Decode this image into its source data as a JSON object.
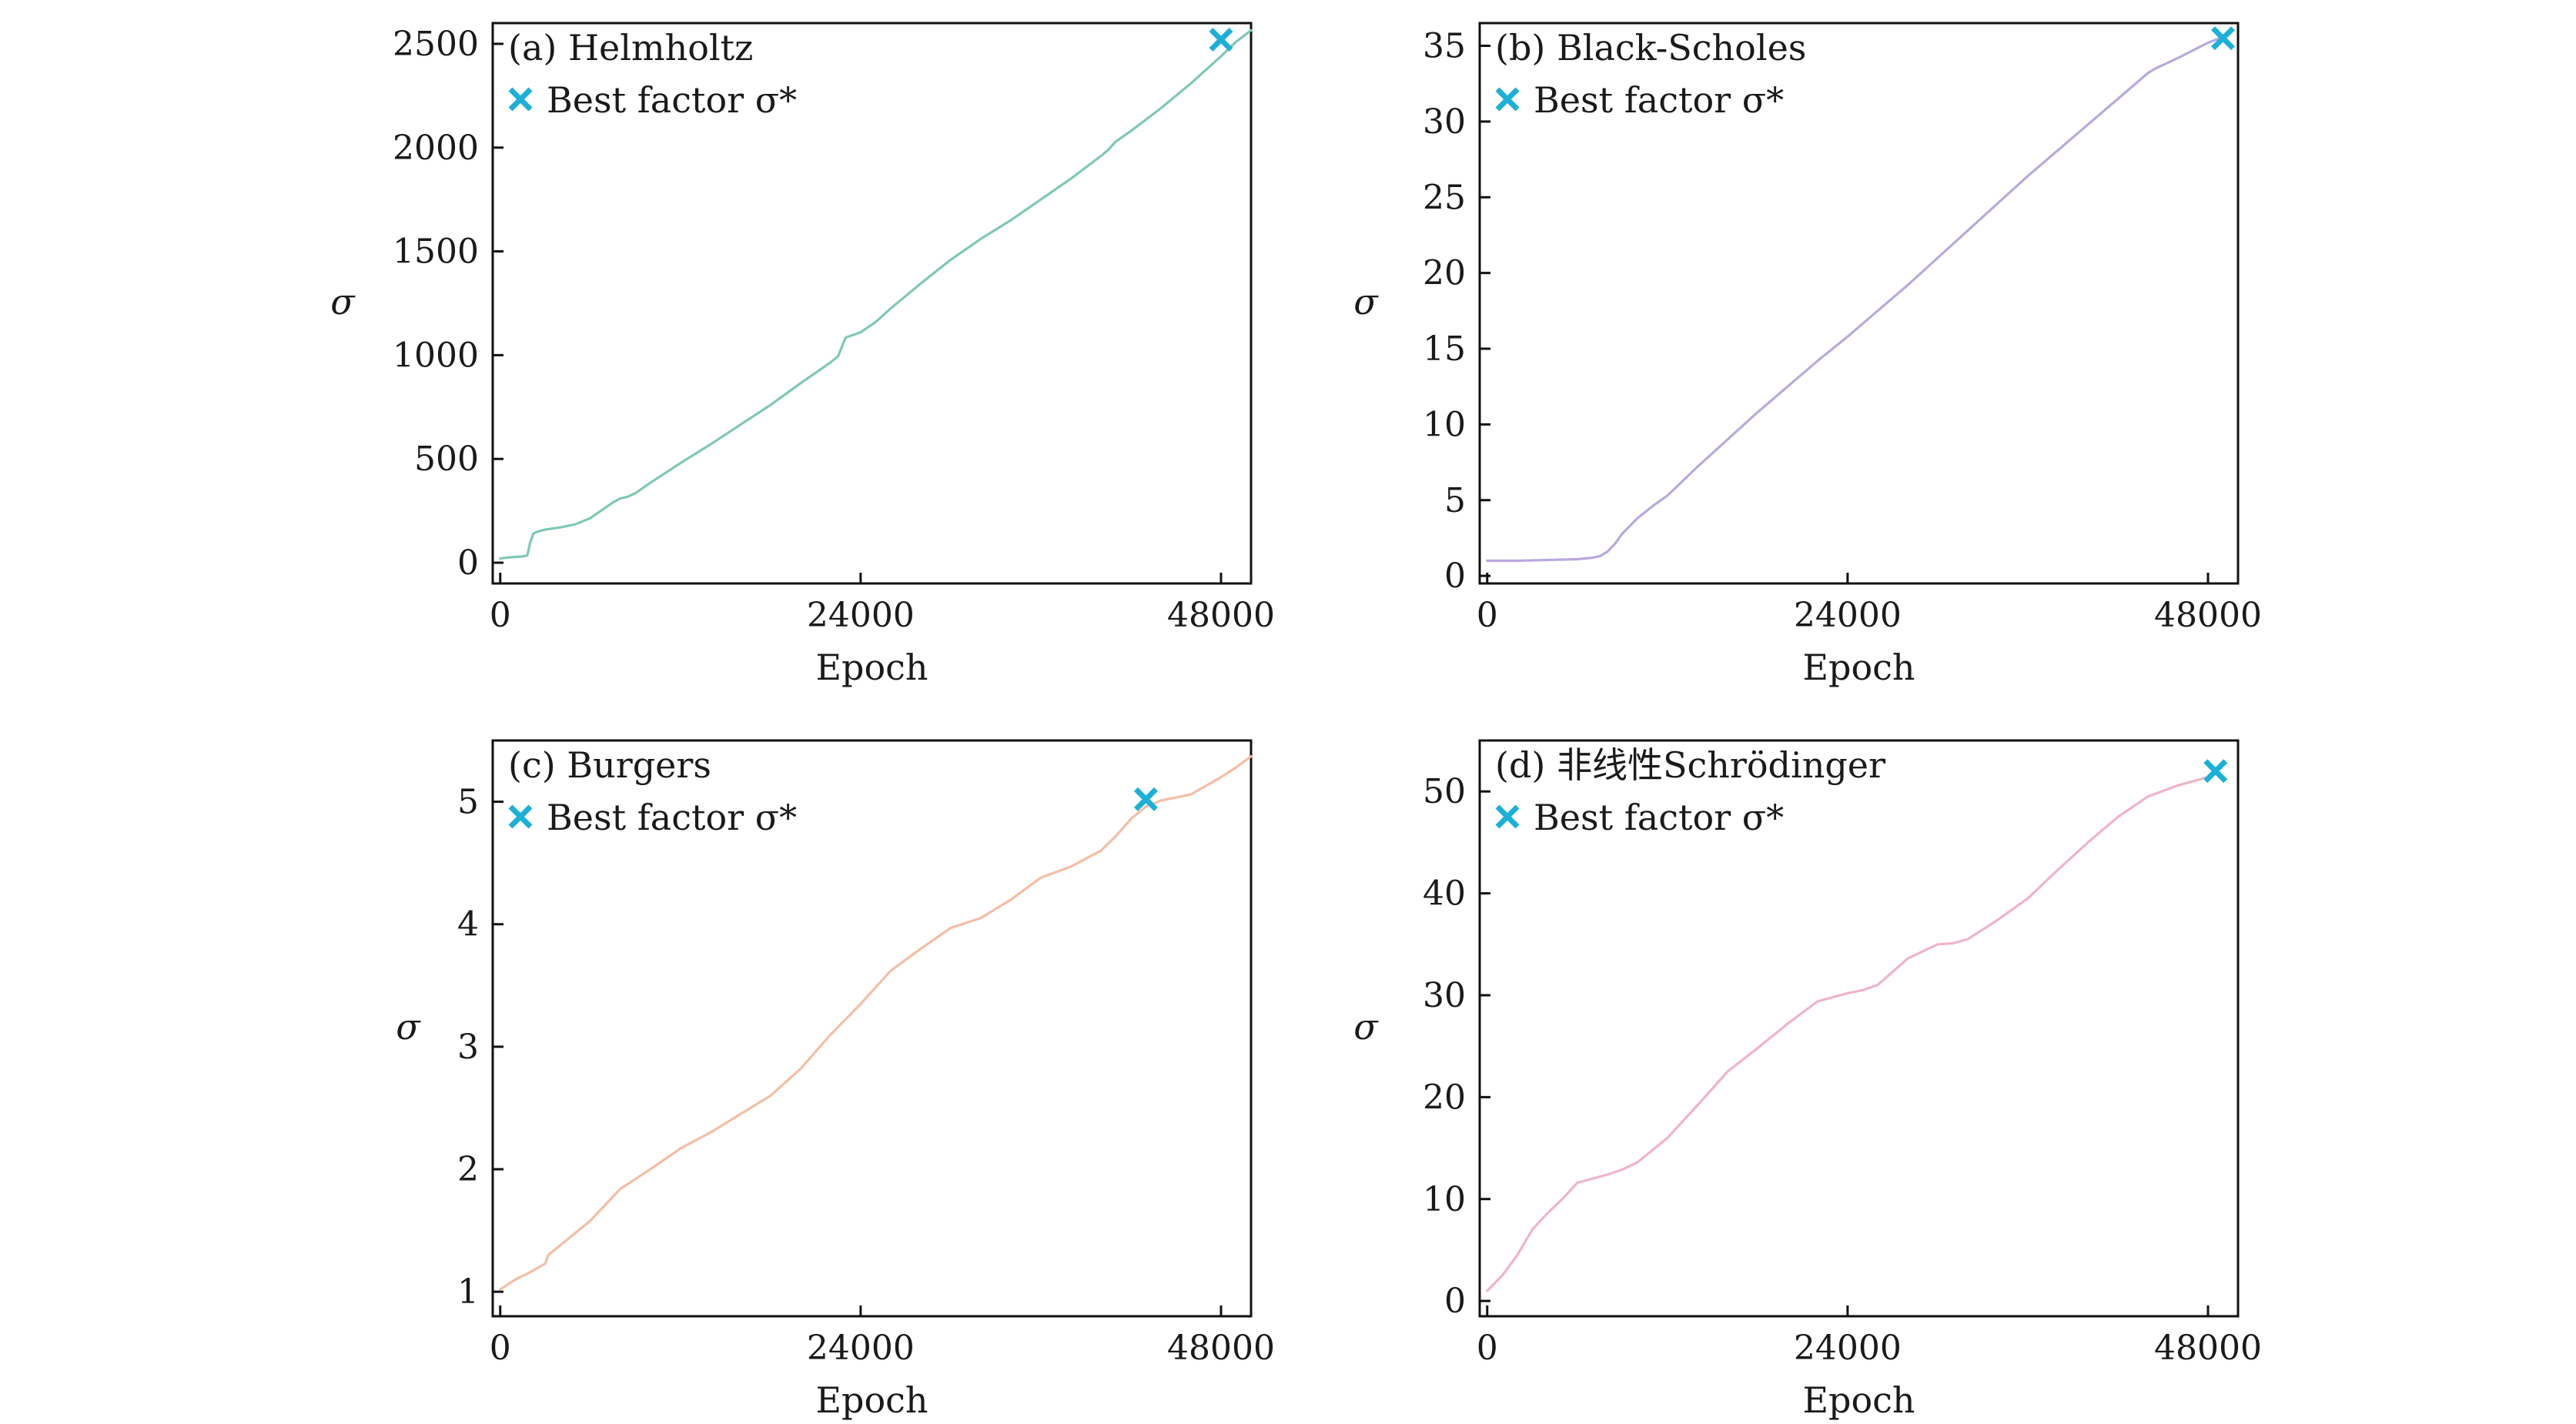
{
  "chart_data": [
    {
      "type": "line",
      "title": "(a) Helmholtz",
      "xlabel": "Epoch",
      "ylabel": "σ",
      "xlim": [
        -500,
        50000
      ],
      "ylim": [
        -100,
        2600
      ],
      "xticks": [
        0,
        24000,
        48000
      ],
      "yticks": [
        0,
        500,
        1000,
        1500,
        2000,
        2500
      ],
      "color": "#7fc8b6",
      "legend": "Best factor σ*",
      "best": {
        "x": 48000,
        "y": 2520
      },
      "series": [
        {
          "name": "σ",
          "x": [
            0,
            500,
            1000,
            1500,
            1800,
            2000,
            2200,
            2500,
            3000,
            4000,
            5000,
            6000,
            7000,
            7500,
            8000,
            8500,
            9000,
            10000,
            12000,
            14000,
            16000,
            18000,
            20000,
            22000,
            22500,
            23000,
            24000,
            25000,
            26000,
            28000,
            30000,
            31000,
            32000,
            34000,
            36000,
            38000,
            40000,
            40500,
            41000,
            42000,
            44000,
            46000,
            48000,
            49000,
            50000
          ],
          "y": [
            20,
            25,
            28,
            30,
            35,
            100,
            140,
            150,
            160,
            170,
            185,
            215,
            265,
            290,
            310,
            318,
            335,
            385,
            480,
            570,
            665,
            760,
            865,
            965,
            995,
            1085,
            1110,
            1160,
            1225,
            1345,
            1460,
            1510,
            1560,
            1650,
            1750,
            1850,
            1960,
            1990,
            2030,
            2080,
            2190,
            2310,
            2440,
            2510,
            2565
          ]
        }
      ]
    },
    {
      "type": "line",
      "title": "(b) Black-Scholes",
      "xlabel": "Epoch",
      "ylabel": "σ",
      "xlim": [
        -500,
        50000
      ],
      "ylim": [
        -0.5,
        36.5
      ],
      "xticks": [
        0,
        24000,
        48000
      ],
      "yticks": [
        0,
        5,
        10,
        15,
        20,
        25,
        30,
        35
      ],
      "color": "#b9a9de",
      "legend": "Best factor σ*",
      "best": {
        "x": 49000,
        "y": 35.5
      },
      "series": [
        {
          "name": "σ",
          "x": [
            0,
            2000,
            4000,
            6000,
            7000,
            7500,
            8000,
            8500,
            9000,
            10000,
            11000,
            12000,
            14000,
            16000,
            18000,
            20000,
            22000,
            24000,
            26000,
            28000,
            30000,
            32000,
            34000,
            36000,
            38000,
            40000,
            42000,
            44000,
            44500,
            46000,
            48000,
            49000
          ],
          "y": [
            1.0,
            1.0,
            1.05,
            1.1,
            1.2,
            1.3,
            1.6,
            2.1,
            2.8,
            3.8,
            4.6,
            5.3,
            7.2,
            9.0,
            10.8,
            12.5,
            14.2,
            15.8,
            17.5,
            19.2,
            21.0,
            22.8,
            24.6,
            26.4,
            28.1,
            29.8,
            31.5,
            33.2,
            33.5,
            34.2,
            35.2,
            35.6
          ]
        }
      ]
    },
    {
      "type": "line",
      "title": "(c) Burgers",
      "xlabel": "Epoch",
      "ylabel": "σ",
      "xlim": [
        -500,
        50000
      ],
      "ylim": [
        0.8,
        5.5
      ],
      "xticks": [
        0,
        24000,
        48000
      ],
      "yticks": [
        1,
        2,
        3,
        4,
        5
      ],
      "color": "#f5bea4",
      "legend": "Best factor σ*",
      "best": {
        "x": 43000,
        "y": 5.02
      },
      "series": [
        {
          "name": "σ",
          "x": [
            0,
            1000,
            2000,
            3000,
            3200,
            4000,
            6000,
            8000,
            10000,
            12000,
            14000,
            16000,
            18000,
            20000,
            22000,
            24000,
            26000,
            28000,
            30000,
            32000,
            34000,
            36000,
            38000,
            40000,
            41000,
            42000,
            43000,
            44000,
            46000,
            48000,
            49000,
            50000
          ],
          "y": [
            1.02,
            1.1,
            1.16,
            1.23,
            1.3,
            1.38,
            1.58,
            1.84,
            2.0,
            2.17,
            2.3,
            2.45,
            2.6,
            2.82,
            3.1,
            3.35,
            3.62,
            3.8,
            3.97,
            4.05,
            4.2,
            4.38,
            4.47,
            4.6,
            4.72,
            4.86,
            4.96,
            5.01,
            5.06,
            5.2,
            5.28,
            5.37
          ]
        }
      ]
    },
    {
      "type": "line",
      "title": "(d) 非线性Schrödinger",
      "xlabel": "Epoch",
      "ylabel": "σ",
      "xlim": [
        -500,
        50000
      ],
      "ylim": [
        -1.5,
        55
      ],
      "xticks": [
        0,
        24000,
        48000
      ],
      "yticks": [
        0,
        10,
        20,
        30,
        40,
        50
      ],
      "color": "#f1b4c4",
      "legend": "Best factor σ*",
      "best": {
        "x": 48500,
        "y": 52
      },
      "series": [
        {
          "name": "σ",
          "x": [
            0,
            1000,
            2000,
            3000,
            4000,
            5000,
            6000,
            7000,
            8000,
            9000,
            10000,
            12000,
            14000,
            16000,
            18000,
            20000,
            22000,
            24000,
            25000,
            26000,
            28000,
            30000,
            31000,
            32000,
            34000,
            36000,
            38000,
            40000,
            42000,
            44000,
            46000,
            48000,
            49000
          ],
          "y": [
            1.0,
            2.5,
            4.5,
            7.0,
            8.6,
            10.0,
            11.6,
            12.0,
            12.4,
            12.9,
            13.6,
            16.0,
            19.2,
            22.5,
            24.8,
            27.2,
            29.4,
            30.2,
            30.5,
            31.0,
            33.6,
            35.0,
            35.1,
            35.5,
            37.4,
            39.5,
            42.3,
            45.0,
            47.5,
            49.5,
            50.6,
            51.4,
            52.8
          ]
        }
      ]
    }
  ]
}
